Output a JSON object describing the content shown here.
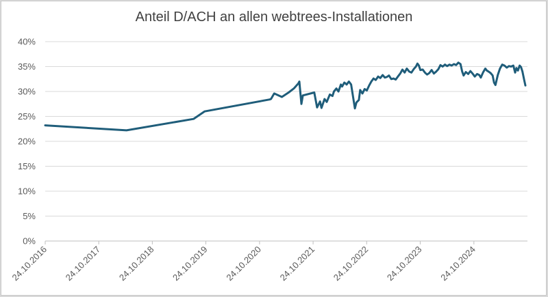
{
  "chart_data": {
    "type": "line",
    "title": "Anteil D/ACH an allen webtrees-Installationen",
    "xlabel": "",
    "ylabel": "",
    "ylim": [
      0,
      0.4
    ],
    "y_ticks": [
      {
        "value": 0.0,
        "label": "0%"
      },
      {
        "value": 0.05,
        "label": "5%"
      },
      {
        "value": 0.1,
        "label": "10%"
      },
      {
        "value": 0.15,
        "label": "15%"
      },
      {
        "value": 0.2,
        "label": "20%"
      },
      {
        "value": 0.25,
        "label": "25%"
      },
      {
        "value": 0.3,
        "label": "30%"
      },
      {
        "value": 0.35,
        "label": "35%"
      },
      {
        "value": 0.4,
        "label": "40%"
      }
    ],
    "x_range": [
      "2016-10-24",
      "2025-10-24"
    ],
    "x_ticks": [
      {
        "date": "2016-10-24",
        "label": "24.10.2016"
      },
      {
        "date": "2017-10-24",
        "label": "24.10.2017"
      },
      {
        "date": "2018-10-24",
        "label": "24.10.2018"
      },
      {
        "date": "2019-10-24",
        "label": "24.10.2019"
      },
      {
        "date": "2020-10-24",
        "label": "24.10.2020"
      },
      {
        "date": "2021-10-24",
        "label": "24.10.2021"
      },
      {
        "date": "2022-10-24",
        "label": "24.10.2022"
      },
      {
        "date": "2023-10-24",
        "label": "24.10.2023"
      },
      {
        "date": "2024-10-24",
        "label": "24.10.2024"
      }
    ],
    "grid": true,
    "series": [
      {
        "color": "#1f5d7a",
        "points": [
          [
            "2016-10-24",
            0.232
          ],
          [
            "2018-05-01",
            0.222
          ],
          [
            "2019-08-01",
            0.245
          ],
          [
            "2019-10-15",
            0.26
          ],
          [
            "2021-01-01",
            0.284
          ],
          [
            "2021-01-10",
            0.285
          ],
          [
            "2021-02-01",
            0.296
          ],
          [
            "2021-03-25",
            0.289
          ],
          [
            "2021-05-10",
            0.298
          ],
          [
            "2021-06-15",
            0.306
          ],
          [
            "2021-07-15",
            0.316
          ],
          [
            "2021-07-22",
            0.32
          ],
          [
            "2021-08-05",
            0.275
          ],
          [
            "2021-08-15",
            0.292
          ],
          [
            "2021-11-01",
            0.298
          ],
          [
            "2021-11-20",
            0.268
          ],
          [
            "2021-12-10",
            0.28
          ],
          [
            "2021-12-20",
            0.267
          ],
          [
            "2022-01-10",
            0.285
          ],
          [
            "2022-01-25",
            0.279
          ],
          [
            "2022-02-15",
            0.294
          ],
          [
            "2022-03-05",
            0.291
          ],
          [
            "2022-03-15",
            0.3
          ],
          [
            "2022-04-01",
            0.306
          ],
          [
            "2022-04-15",
            0.3
          ],
          [
            "2022-05-01",
            0.314
          ],
          [
            "2022-05-10",
            0.31
          ],
          [
            "2022-05-25",
            0.318
          ],
          [
            "2022-06-10",
            0.314
          ],
          [
            "2022-06-25",
            0.32
          ],
          [
            "2022-07-10",
            0.314
          ],
          [
            "2022-07-25",
            0.286
          ],
          [
            "2022-08-05",
            0.266
          ],
          [
            "2022-08-15",
            0.278
          ],
          [
            "2022-09-01",
            0.283
          ],
          [
            "2022-09-10",
            0.303
          ],
          [
            "2022-09-25",
            0.296
          ],
          [
            "2022-10-10",
            0.305
          ],
          [
            "2022-10-25",
            0.302
          ],
          [
            "2022-11-10",
            0.312
          ],
          [
            "2022-11-25",
            0.32
          ],
          [
            "2022-12-10",
            0.326
          ],
          [
            "2022-12-25",
            0.323
          ],
          [
            "2023-01-10",
            0.33
          ],
          [
            "2023-01-25",
            0.327
          ],
          [
            "2023-02-10",
            0.333
          ],
          [
            "2023-02-25",
            0.328
          ],
          [
            "2023-03-10",
            0.329
          ],
          [
            "2023-03-25",
            0.332
          ],
          [
            "2023-04-10",
            0.325
          ],
          [
            "2023-04-25",
            0.326
          ],
          [
            "2023-05-10",
            0.324
          ],
          [
            "2023-05-25",
            0.33
          ],
          [
            "2023-06-10",
            0.336
          ],
          [
            "2023-06-25",
            0.344
          ],
          [
            "2023-07-10",
            0.338
          ],
          [
            "2023-07-25",
            0.346
          ],
          [
            "2023-08-10",
            0.34
          ],
          [
            "2023-08-25",
            0.338
          ],
          [
            "2023-09-10",
            0.345
          ],
          [
            "2023-09-25",
            0.35
          ],
          [
            "2023-10-05",
            0.356
          ],
          [
            "2023-10-15",
            0.352
          ],
          [
            "2023-10-25",
            0.343
          ],
          [
            "2023-11-10",
            0.344
          ],
          [
            "2023-11-25",
            0.338
          ],
          [
            "2023-12-10",
            0.334
          ],
          [
            "2023-12-25",
            0.337
          ],
          [
            "2024-01-10",
            0.343
          ],
          [
            "2024-01-25",
            0.336
          ],
          [
            "2024-02-10",
            0.34
          ],
          [
            "2024-02-25",
            0.345
          ],
          [
            "2024-03-10",
            0.353
          ],
          [
            "2024-03-25",
            0.35
          ],
          [
            "2024-04-10",
            0.354
          ],
          [
            "2024-04-25",
            0.351
          ],
          [
            "2024-05-10",
            0.354
          ],
          [
            "2024-05-25",
            0.352
          ],
          [
            "2024-06-10",
            0.355
          ],
          [
            "2024-06-25",
            0.353
          ],
          [
            "2024-07-10",
            0.358
          ],
          [
            "2024-07-25",
            0.355
          ],
          [
            "2024-08-05",
            0.34
          ],
          [
            "2024-08-15",
            0.332
          ],
          [
            "2024-08-30",
            0.339
          ],
          [
            "2024-09-15",
            0.335
          ],
          [
            "2024-09-30",
            0.341
          ],
          [
            "2024-10-15",
            0.336
          ],
          [
            "2024-10-30",
            0.33
          ],
          [
            "2024-11-15",
            0.335
          ],
          [
            "2024-11-30",
            0.333
          ],
          [
            "2024-12-10",
            0.328
          ],
          [
            "2024-12-25",
            0.338
          ],
          [
            "2025-01-10",
            0.346
          ],
          [
            "2025-01-20",
            0.342
          ],
          [
            "2025-02-01",
            0.34
          ],
          [
            "2025-02-15",
            0.337
          ],
          [
            "2025-03-01",
            0.332
          ],
          [
            "2025-03-10",
            0.318
          ],
          [
            "2025-03-20",
            0.313
          ],
          [
            "2025-04-05",
            0.333
          ],
          [
            "2025-04-20",
            0.346
          ],
          [
            "2025-05-05",
            0.354
          ],
          [
            "2025-05-20",
            0.352
          ],
          [
            "2025-06-05",
            0.348
          ],
          [
            "2025-06-20",
            0.351
          ],
          [
            "2025-07-05",
            0.35
          ],
          [
            "2025-07-20",
            0.352
          ],
          [
            "2025-08-01",
            0.338
          ],
          [
            "2025-08-10",
            0.347
          ],
          [
            "2025-08-20",
            0.342
          ],
          [
            "2025-09-01",
            0.352
          ],
          [
            "2025-09-10",
            0.349
          ],
          [
            "2025-09-20",
            0.34
          ],
          [
            "2025-10-01",
            0.324
          ],
          [
            "2025-10-10",
            0.312
          ]
        ]
      }
    ]
  }
}
